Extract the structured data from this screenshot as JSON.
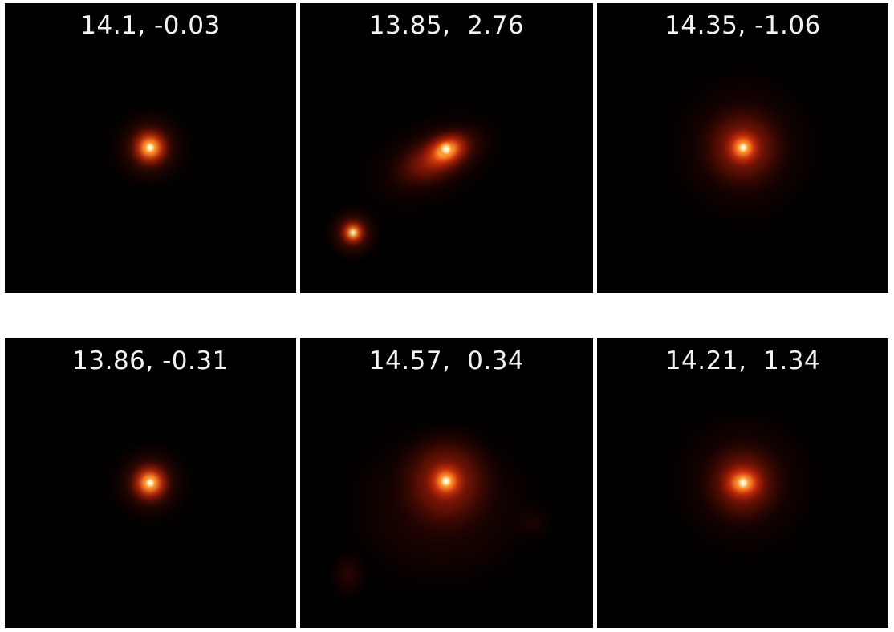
{
  "panels": [
    {
      "label": "14.1, -0.03"
    },
    {
      "label": "13.85,  2.76"
    },
    {
      "label": "14.35, -1.06"
    },
    {
      "label": "13.86, -0.31"
    },
    {
      "label": "14.57,  0.34"
    },
    {
      "label": "14.21,  1.34"
    }
  ],
  "colors": {
    "background": "#000000",
    "core": "#ffffff",
    "hot": "#ffd27a",
    "warm": "#ff7a1a",
    "glow": "#c3200a",
    "label": "#f2f2f2"
  }
}
